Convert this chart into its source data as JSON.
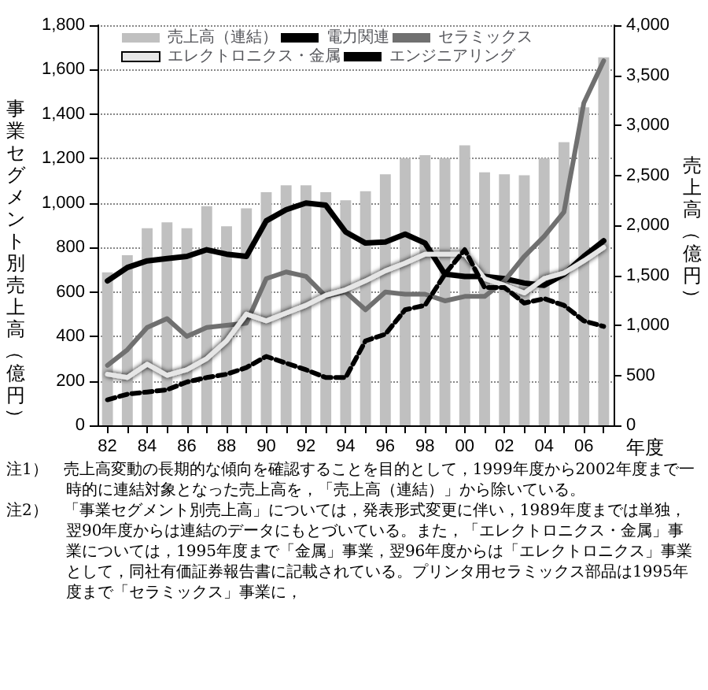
{
  "chart_data": {
    "type": "line",
    "categories": [
      "82",
      null,
      "84",
      null,
      "86",
      null,
      "88",
      null,
      "90",
      null,
      "92",
      null,
      "94",
      null,
      "96",
      null,
      "98",
      null,
      "00",
      null,
      "02",
      null,
      "04",
      null,
      "06",
      null
    ],
    "series": [
      {
        "name": "売上高（連結）",
        "type": "bar",
        "axis": "y2",
        "color": "#c0c0c0",
        "values": [
          1530,
          1700,
          1970,
          2030,
          1970,
          2190,
          1990,
          2170,
          2330,
          2400,
          2400,
          2330,
          2250,
          2340,
          2510,
          2670,
          2700,
          2670,
          2800,
          2530,
          2510,
          2500,
          2670,
          2830,
          3180,
          3680
        ]
      },
      {
        "name": "電力関連",
        "color": "#000000",
        "values": [
          650,
          710,
          740,
          750,
          760,
          790,
          770,
          760,
          920,
          970,
          1000,
          990,
          870,
          820,
          825,
          860,
          820,
          680,
          670,
          670,
          660,
          640,
          630,
          680,
          760,
          830
        ]
      },
      {
        "name": "セラミックス",
        "color": "#707070",
        "values": [
          270,
          340,
          440,
          480,
          400,
          440,
          450,
          460,
          660,
          690,
          670,
          580,
          600,
          520,
          600,
          590,
          590,
          560,
          580,
          580,
          650,
          760,
          850,
          960,
          1450,
          1640
        ]
      },
      {
        "name": "エレクトロニクス・金属",
        "color": "#e6e6e6",
        "values": [
          230,
          215,
          275,
          225,
          250,
          300,
          380,
          500,
          470,
          505,
          540,
          585,
          610,
          650,
          695,
          730,
          770,
          770,
          770,
          660,
          630,
          595,
          660,
          685,
          740,
          800
        ]
      },
      {
        "name": "エンジニアリング",
        "color": "#000000",
        "line_style": "dashed",
        "values": [
          115,
          140,
          150,
          160,
          195,
          215,
          230,
          260,
          310,
          280,
          250,
          215,
          215,
          380,
          410,
          520,
          540,
          680,
          790,
          620,
          620,
          550,
          570,
          540,
          470,
          445
        ]
      }
    ],
    "ylabel": "事業セグメント別売上高（億円）",
    "y2label": "売上高（億円）",
    "xlabel": "年度",
    "ylim": [
      0,
      1800
    ],
    "yticks": [
      0,
      200,
      400,
      600,
      800,
      {
        "value": 1000,
        "label": "1,000"
      },
      {
        "value": 1200,
        "label": "1,200"
      },
      {
        "value": 1400,
        "label": "1,400"
      },
      {
        "value": 1600,
        "label": "1,600"
      },
      {
        "value": 1800,
        "label": "1,800"
      }
    ],
    "y2lim": [
      0,
      4000
    ],
    "y2ticks": [
      0,
      500,
      {
        "value": 1000,
        "label": "1,000"
      },
      {
        "value": 1500,
        "label": "1,500"
      },
      {
        "value": 2000,
        "label": "2,000"
      },
      {
        "value": 2500,
        "label": "2,500"
      },
      {
        "value": 3000,
        "label": "3,000"
      },
      {
        "value": 3500,
        "label": "3,500"
      },
      {
        "value": 4000,
        "label": "4,000"
      }
    ],
    "grid": "y",
    "legend": "top left",
    "marker": "none",
    "annotations": [
      "注1）　売上高変動の長期的な傾向を確認することを目的として，1999年度から2002年度まで一時的に連結対象となった売上高を，「売上高（連結）」から除いている。",
      "注2）　「事業セグメント別売上高」については，発表形式変更に伴い，1989年度までは単独，翌90年度からは連結のデータにもとづいている。また，「エレクトロニクス・金属」事業については，1995年度まで「金属」事業，翌96年度からは「エレクトロニクス」事業として，同社有価証券報告書に記載されている。プリンタ用セラミックス部品は1995年度まで「セラミックス」事業に，"
    ]
  }
}
